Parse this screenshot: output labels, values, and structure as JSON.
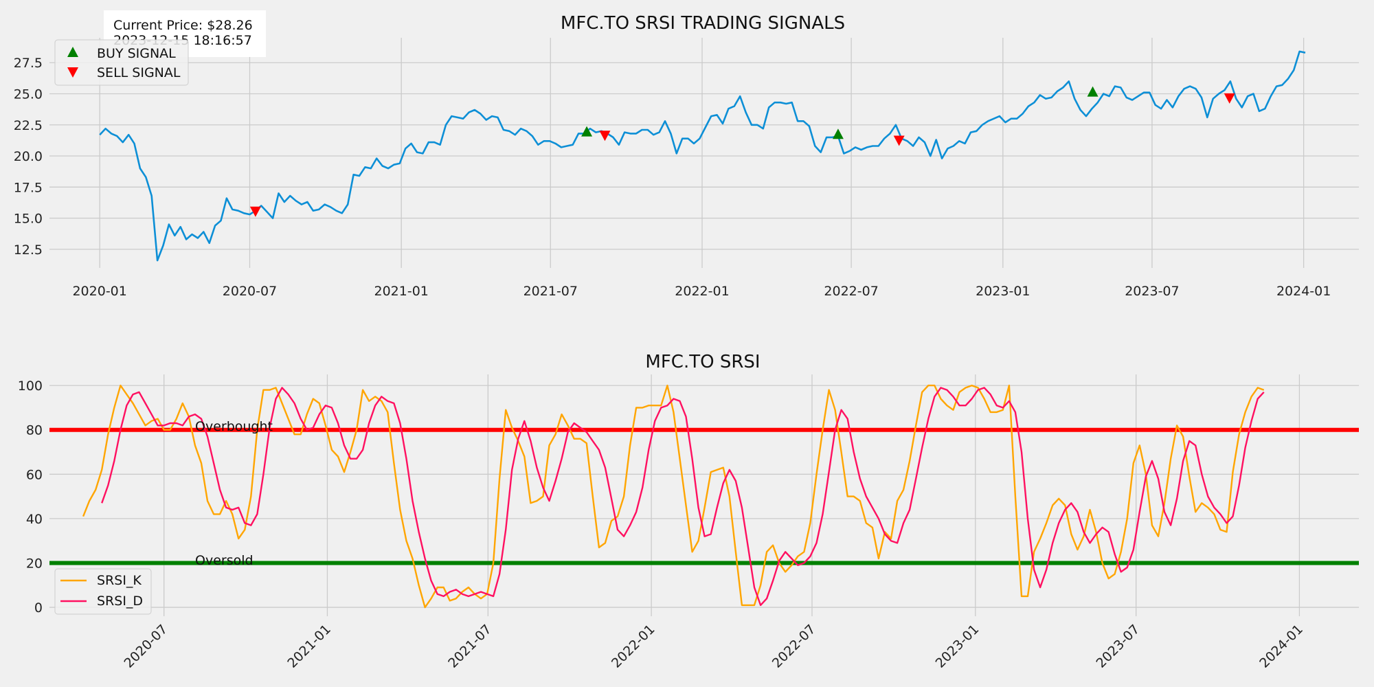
{
  "colors": {
    "background": "#f0f0f0",
    "price_line": "#0d8fd6",
    "buy": "#008000",
    "sell": "#ff0000",
    "srsi_k": "#ffa500",
    "srsi_d": "#ff1060",
    "overbought_line": "#ff0000",
    "oversold_line": "#008000"
  },
  "info_box": {
    "price_label": "Current Price: $28.26",
    "timestamp": "2023-12-15 18:16:57"
  },
  "chart_data": [
    {
      "type": "line",
      "title": "MFC.TO SRSI TRADING SIGNALS",
      "xlabel": "",
      "ylabel": "",
      "xlim": [
        "2019-11-01",
        "2024-03-08"
      ],
      "ylim": [
        11.0,
        29.5
      ],
      "x_ticks": [
        "2020-01",
        "2020-07",
        "2021-01",
        "2021-07",
        "2022-01",
        "2022-07",
        "2023-01",
        "2023-07",
        "2024-01"
      ],
      "y_ticks": [
        12.5,
        15.0,
        17.5,
        20.0,
        22.5,
        25.0,
        27.5
      ],
      "y_tick_labels": [
        "12.5",
        "15.0",
        "17.5",
        "20.0",
        "22.5",
        "25.0",
        "27.5"
      ],
      "grid": true,
      "legend": "top-left",
      "price": {
        "start": "2020-01-01",
        "step_days": 7,
        "values": [
          21.7,
          22.2,
          21.8,
          21.6,
          21.1,
          21.7,
          21.0,
          19.0,
          18.3,
          16.8,
          11.6,
          12.8,
          14.5,
          13.6,
          14.3,
          13.3,
          13.7,
          13.4,
          13.9,
          13.0,
          14.4,
          14.8,
          16.6,
          15.7,
          15.6,
          15.4,
          15.3,
          15.6,
          16.0,
          15.5,
          15.0,
          17.0,
          16.3,
          16.8,
          16.4,
          16.1,
          16.3,
          15.6,
          15.7,
          16.1,
          15.9,
          15.6,
          15.4,
          16.1,
          18.5,
          18.4,
          19.1,
          19.0,
          19.8,
          19.2,
          19.0,
          19.3,
          19.4,
          20.6,
          21.0,
          20.3,
          20.2,
          21.1,
          21.1,
          20.9,
          22.5,
          23.2,
          23.1,
          23.0,
          23.5,
          23.7,
          23.4,
          22.9,
          23.2,
          23.1,
          22.1,
          22.0,
          21.7,
          22.2,
          22.0,
          21.6,
          20.9,
          21.2,
          21.2,
          21.0,
          20.7,
          20.8,
          20.9,
          21.8,
          21.8,
          22.2,
          21.9,
          22.0,
          21.8,
          21.5,
          20.9,
          21.9,
          21.8,
          21.8,
          22.1,
          22.1,
          21.7,
          21.9,
          22.8,
          21.8,
          20.2,
          21.4,
          21.4,
          21.0,
          21.4,
          22.3,
          23.2,
          23.3,
          22.6,
          23.8,
          24.0,
          24.8,
          23.5,
          22.5,
          22.5,
          22.2,
          23.9,
          24.3,
          24.3,
          24.2,
          24.3,
          22.8,
          22.8,
          22.4,
          20.8,
          20.3,
          21.5,
          21.5,
          21.6,
          20.2,
          20.4,
          20.7,
          20.5,
          20.7,
          20.8,
          20.8,
          21.4,
          21.8,
          22.5,
          21.4,
          21.2,
          20.8,
          21.5,
          21.1,
          20.0,
          21.3,
          19.8,
          20.6,
          20.8,
          21.2,
          21.0,
          21.9,
          22.0,
          22.5,
          22.8,
          23.0,
          23.2,
          22.7,
          23.0,
          23.0,
          23.4,
          24.0,
          24.3,
          24.9,
          24.6,
          24.7,
          25.2,
          25.5,
          26.0,
          24.6,
          23.7,
          23.2,
          23.8,
          24.3,
          25.0,
          24.8,
          25.6,
          25.5,
          24.7,
          24.5,
          24.8,
          25.1,
          25.1,
          24.1,
          23.8,
          24.5,
          23.9,
          24.8,
          25.4,
          25.6,
          25.4,
          24.7,
          23.1,
          24.6,
          25.0,
          25.3,
          26.0,
          24.6,
          23.9,
          24.8,
          25.0,
          23.6,
          23.8,
          24.8,
          25.6,
          25.7,
          26.2,
          26.9,
          28.4,
          28.3
        ]
      },
      "series": [
        {
          "name": "BUY SIGNAL",
          "dates": [
            "2021-08-14",
            "2022-06-15",
            "2023-04-20"
          ],
          "values": [
            21.9,
            21.7,
            25.1
          ]
        },
        {
          "name": "SELL SIGNAL",
          "dates": [
            "2020-07-08",
            "2021-09-05",
            "2022-08-28",
            "2023-10-03"
          ],
          "values": [
            15.6,
            21.7,
            21.3,
            24.7
          ]
        }
      ]
    },
    {
      "type": "line",
      "title": "MFC.TO SRSI",
      "xlabel": "",
      "ylabel": "",
      "xlim": [
        "2020-02-23",
        "2024-03-08"
      ],
      "ylim": [
        -4,
        105
      ],
      "x_ticks": [
        "2020-07",
        "2021-01",
        "2021-07",
        "2022-01",
        "2022-07",
        "2023-01",
        "2023-07",
        "2024-01"
      ],
      "y_ticks": [
        0,
        20,
        40,
        60,
        80,
        100
      ],
      "grid": true,
      "legend": "bottom-left",
      "overbought": {
        "value": 80,
        "label": "Overbought"
      },
      "oversold": {
        "value": 20,
        "label": "Oversold"
      },
      "series": [
        {
          "name": "SRSI_K",
          "start": "2020-04-01",
          "step_days": 7,
          "values": [
            41,
            48,
            53,
            62,
            78,
            90,
            100,
            96,
            92,
            87,
            82,
            84,
            85,
            80,
            80,
            85,
            92,
            86,
            73,
            65,
            48,
            42,
            42,
            48,
            42,
            31,
            35,
            50,
            80,
            98,
            98,
            99,
            92,
            85,
            78,
            78,
            87,
            94,
            92,
            82,
            71,
            68,
            61,
            70,
            80,
            98,
            93,
            95,
            93,
            88,
            65,
            44,
            30,
            22,
            10,
            0,
            4,
            9,
            9,
            3,
            4,
            7,
            9,
            6,
            4,
            6,
            20,
            58,
            89,
            81,
            75,
            68,
            47,
            48,
            50,
            73,
            78,
            87,
            82,
            76,
            76,
            74,
            50,
            27,
            29,
            39,
            41,
            50,
            73,
            90,
            90,
            91,
            91,
            91,
            100,
            88,
            67,
            46,
            25,
            30,
            45,
            61,
            62,
            63,
            50,
            25,
            1,
            1,
            1,
            10,
            25,
            28,
            20,
            16,
            19,
            23,
            25,
            38,
            60,
            80,
            98,
            89,
            70,
            50,
            50,
            48,
            38,
            36,
            22,
            34,
            31,
            48,
            53,
            66,
            82,
            97,
            100,
            100,
            94,
            91,
            89,
            97,
            99,
            100,
            99,
            94,
            88,
            88,
            89,
            100,
            50,
            5,
            5,
            25,
            31,
            38,
            46,
            49,
            46,
            33,
            26,
            32,
            44,
            34,
            20,
            13,
            15,
            25,
            40,
            65,
            73,
            60,
            37,
            32,
            47,
            67,
            82,
            77,
            59,
            43,
            47,
            45,
            42,
            35,
            34,
            61,
            78,
            88,
            95,
            99,
            98
          ]
        },
        {
          "name": "SRSI_D",
          "start": "2020-04-22",
          "step_days": 7,
          "values": [
            47,
            55,
            66,
            80,
            91,
            96,
            97,
            92,
            87,
            82,
            82,
            83,
            83,
            82,
            86,
            87,
            85,
            77,
            65,
            53,
            45,
            44,
            45,
            38,
            37,
            42,
            60,
            81,
            94,
            99,
            96,
            92,
            85,
            80,
            81,
            87,
            91,
            90,
            83,
            73,
            67,
            67,
            71,
            83,
            91,
            95,
            93,
            92,
            83,
            67,
            48,
            34,
            22,
            12,
            6,
            5,
            7,
            8,
            6,
            5,
            6,
            7,
            6,
            5,
            15,
            35,
            62,
            76,
            84,
            75,
            63,
            54,
            48,
            57,
            67,
            79,
            83,
            81,
            79,
            75,
            71,
            63,
            49,
            35,
            32,
            37,
            43,
            54,
            71,
            84,
            90,
            91,
            94,
            93,
            86,
            67,
            45,
            32,
            33,
            45,
            56,
            62,
            57,
            45,
            27,
            9,
            1,
            4,
            12,
            21,
            25,
            22,
            19,
            20,
            23,
            29,
            42,
            61,
            80,
            89,
            85,
            70,
            58,
            50,
            45,
            40,
            33,
            30,
            29,
            38,
            44,
            58,
            72,
            85,
            95,
            99,
            98,
            95,
            91,
            91,
            94,
            98,
            99,
            96,
            91,
            90,
            93,
            88,
            70,
            40,
            17,
            9,
            17,
            29,
            38,
            44,
            47,
            43,
            34,
            29,
            33,
            36,
            34,
            24,
            16,
            18,
            26,
            43,
            59,
            66,
            58,
            43,
            37,
            49,
            66,
            75,
            73,
            60,
            50,
            45,
            42,
            38,
            41,
            55,
            72,
            84,
            94,
            97
          ]
        }
      ]
    }
  ]
}
